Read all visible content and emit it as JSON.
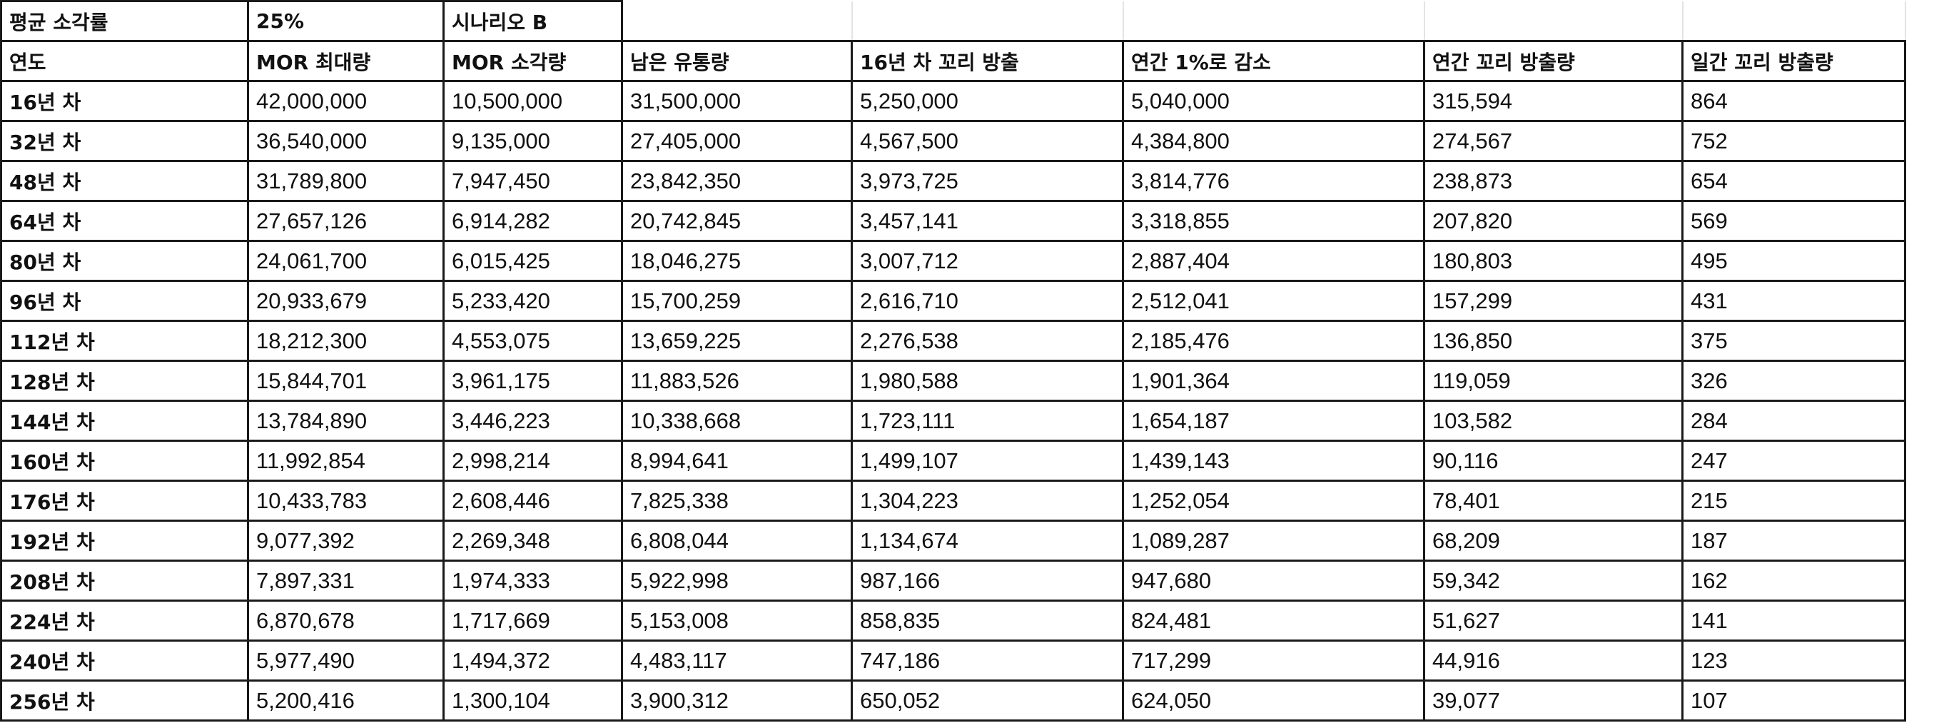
{
  "params": {
    "avg_label": "평균 소각률",
    "avg_value": "25%",
    "scenario": "시나리오 B"
  },
  "headers": [
    "연도",
    "MOR 최대량",
    "MOR 소각량",
    "남은 유통량",
    "16년 차 꼬리 방출",
    "연간 1%로 감소",
    "연간 꼬리 방출량",
    "일간 꼬리 방출량"
  ],
  "rows": [
    [
      "16년 차",
      "42,000,000",
      "10,500,000",
      "31,500,000",
      "5,250,000",
      "5,040,000",
      "315,594",
      "864"
    ],
    [
      "32년 차",
      "36,540,000",
      "9,135,000",
      "27,405,000",
      "4,567,500",
      "4,384,800",
      "274,567",
      "752"
    ],
    [
      "48년 차",
      "31,789,800",
      "7,947,450",
      "23,842,350",
      "3,973,725",
      "3,814,776",
      "238,873",
      "654"
    ],
    [
      "64년 차",
      "27,657,126",
      "6,914,282",
      "20,742,845",
      "3,457,141",
      "3,318,855",
      "207,820",
      "569"
    ],
    [
      "80년 차",
      "24,061,700",
      "6,015,425",
      "18,046,275",
      "3,007,712",
      "2,887,404",
      "180,803",
      "495"
    ],
    [
      "96년 차",
      "20,933,679",
      "5,233,420",
      "15,700,259",
      "2,616,710",
      "2,512,041",
      "157,299",
      "431"
    ],
    [
      "112년 차",
      "18,212,300",
      "4,553,075",
      "13,659,225",
      "2,276,538",
      "2,185,476",
      "136,850",
      "375"
    ],
    [
      "128년 차",
      "15,844,701",
      "3,961,175",
      "11,883,526",
      "1,980,588",
      "1,901,364",
      "119,059",
      "326"
    ],
    [
      "144년 차",
      "13,784,890",
      "3,446,223",
      "10,338,668",
      "1,723,111",
      "1,654,187",
      "103,582",
      "284"
    ],
    [
      "160년 차",
      "11,992,854",
      "2,998,214",
      "8,994,641",
      "1,499,107",
      "1,439,143",
      "90,116",
      "247"
    ],
    [
      "176년 차",
      "10,433,783",
      "2,608,446",
      "7,825,338",
      "1,304,223",
      "1,252,054",
      "78,401",
      "215"
    ],
    [
      "192년 차",
      "9,077,392",
      "2,269,348",
      "6,808,044",
      "1,134,674",
      "1,089,287",
      "68,209",
      "187"
    ],
    [
      "208년 차",
      "7,897,331",
      "1,974,333",
      "5,922,998",
      "987,166",
      "947,680",
      "59,342",
      "162"
    ],
    [
      "224년 차",
      "6,870,678",
      "1,717,669",
      "5,153,008",
      "858,835",
      "824,481",
      "51,627",
      "141"
    ],
    [
      "240년 차",
      "5,977,490",
      "1,494,372",
      "4,483,117",
      "747,186",
      "717,299",
      "44,916",
      "123"
    ],
    [
      "256년 차",
      "5,200,416",
      "1,300,104",
      "3,900,312",
      "650,052",
      "624,050",
      "39,077",
      "107"
    ]
  ]
}
